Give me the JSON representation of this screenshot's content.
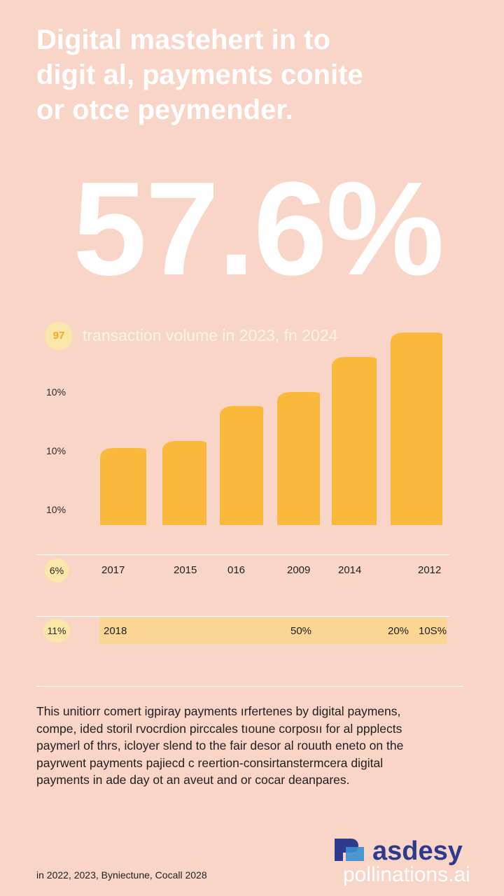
{
  "headline": {
    "lines": [
      "Digital mastehert in to",
      "digit al, payments conite",
      "or otce peymender."
    ]
  },
  "big_stat": "57.6%",
  "chart_data": {
    "type": "bar",
    "title": "transaction volume in 2023, fn 2024",
    "badge": "97",
    "y_tick_labels": [
      "10%",
      "10%",
      "10%"
    ],
    "x_row_badge": "6%",
    "categories": [
      "2017",
      "2015",
      "016",
      "2009",
      "2014",
      "2012"
    ],
    "values": [
      11,
      12,
      17,
      19,
      24,
      27.5
    ],
    "ylim": [
      0,
      30
    ],
    "colors": {
      "bar": "#fbb93b"
    }
  },
  "band": {
    "badge": "11%",
    "labels": [
      "2018",
      "50%",
      "20%",
      "10S%"
    ]
  },
  "body_text": {
    "lines": [
      "This unitiorr comert igpiray payments ırfertenes by digital paymens,",
      "compe, ided storil rvocrdion pirccales tıoune corposıı for al ppplects",
      "paymerl of thrs, icloyer slend to the fair desor al rouuth eneto on the",
      "payrwent payments pajiecd c reertion-consirtanstermcera digital",
      "payments in ade day ot an aveut and or cocar deanpares."
    ]
  },
  "footer": "in 2022, 2023, Byniectune, Cocall 2028",
  "brand": {
    "name": "asdesy",
    "watermark": "pollinations.ai"
  },
  "colors": {
    "background": "#f9d5c7",
    "bar": "#fbb93b",
    "band": "#fad594",
    "badge": "#fbe6a9",
    "brand": "#2e3b8c"
  }
}
